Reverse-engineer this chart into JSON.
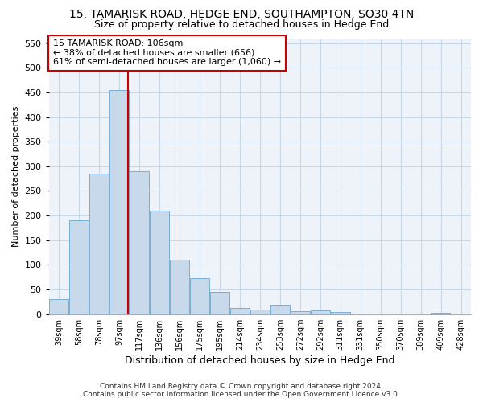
{
  "title": "15, TAMARISK ROAD, HEDGE END, SOUTHAMPTON, SO30 4TN",
  "subtitle": "Size of property relative to detached houses in Hedge End",
  "xlabel": "Distribution of detached houses by size in Hedge End",
  "ylabel": "Number of detached properties",
  "bar_color": "#c9d9ec",
  "bar_edge_color": "#7aadd4",
  "categories": [
    "39sqm",
    "58sqm",
    "78sqm",
    "97sqm",
    "117sqm",
    "136sqm",
    "156sqm",
    "175sqm",
    "195sqm",
    "214sqm",
    "234sqm",
    "253sqm",
    "272sqm",
    "292sqm",
    "311sqm",
    "331sqm",
    "350sqm",
    "370sqm",
    "389sqm",
    "409sqm",
    "428sqm"
  ],
  "values": [
    30,
    190,
    285,
    455,
    290,
    210,
    110,
    73,
    46,
    12,
    10,
    19,
    6,
    7,
    5,
    0,
    0,
    0,
    0,
    2,
    0
  ],
  "ylim": [
    0,
    560
  ],
  "yticks": [
    0,
    50,
    100,
    150,
    200,
    250,
    300,
    350,
    400,
    450,
    500,
    550
  ],
  "annotation_title": "15 TAMARISK ROAD: 106sqm",
  "annotation_line1": "← 38% of detached houses are smaller (656)",
  "annotation_line2": "61% of semi-detached houses are larger (1,060) →",
  "annotation_box_color": "#ffffff",
  "annotation_border_color": "#cc0000",
  "footer1": "Contains HM Land Registry data © Crown copyright and database right 2024.",
  "footer2": "Contains public sector information licensed under the Open Government Licence v3.0.",
  "grid_color": "#c8d8e8",
  "background_color": "#eef3f9"
}
